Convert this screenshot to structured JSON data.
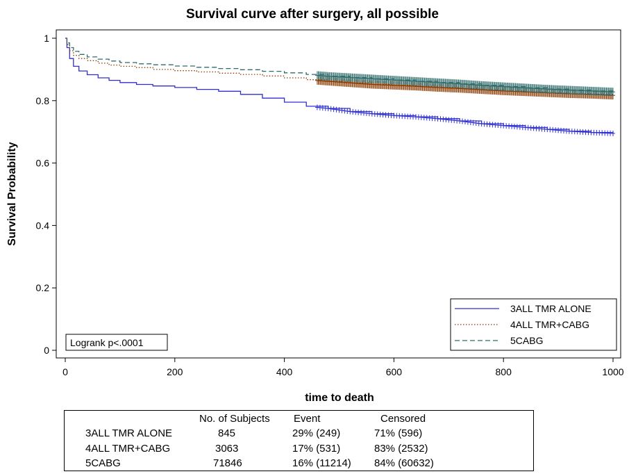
{
  "chart_data": {
    "type": "line",
    "title": "Survival curve after surgery, all possible",
    "xlabel": "time to death",
    "ylabel": "Survival Probability",
    "xlim": [
      0,
      1000
    ],
    "ylim": [
      0,
      1
    ],
    "x_ticks": [
      "0",
      "200",
      "400",
      "600",
      "800",
      "1000"
    ],
    "y_ticks": [
      "0",
      "0.2",
      "0.4",
      "0.6",
      "0.8",
      "1"
    ],
    "grid": false,
    "legend_position": "bottom-right",
    "annotation": "Logrank p<.0001",
    "series": [
      {
        "name": "3ALL TMR ALONE",
        "color": "#2f2fd0",
        "style": "solid",
        "x": [
          0,
          3,
          8,
          15,
          25,
          40,
          60,
          80,
          100,
          130,
          160,
          200,
          240,
          280,
          320,
          360,
          400,
          440,
          480,
          520,
          560,
          600,
          640,
          680,
          720,
          760,
          800,
          840,
          880,
          920,
          960,
          1000
        ],
        "y": [
          1.0,
          0.97,
          0.935,
          0.91,
          0.895,
          0.883,
          0.873,
          0.865,
          0.858,
          0.852,
          0.847,
          0.842,
          0.836,
          0.83,
          0.82,
          0.808,
          0.795,
          0.782,
          0.775,
          0.765,
          0.758,
          0.752,
          0.748,
          0.742,
          0.735,
          0.726,
          0.72,
          0.714,
          0.708,
          0.702,
          0.698,
          0.695
        ],
        "censored_from": 460
      },
      {
        "name": "4ALL TMR+CABG",
        "color": "#8a3a00",
        "style": "dotted",
        "x": [
          0,
          3,
          8,
          15,
          25,
          40,
          60,
          80,
          100,
          130,
          160,
          200,
          240,
          280,
          320,
          360,
          400,
          440,
          480,
          520,
          560,
          600,
          640,
          680,
          720,
          760,
          800,
          840,
          880,
          920,
          960,
          1000
        ],
        "y": [
          1.0,
          0.98,
          0.96,
          0.945,
          0.935,
          0.928,
          0.92,
          0.914,
          0.91,
          0.906,
          0.9,
          0.896,
          0.892,
          0.888,
          0.884,
          0.879,
          0.873,
          0.867,
          0.862,
          0.857,
          0.852,
          0.849,
          0.846,
          0.842,
          0.839,
          0.835,
          0.831,
          0.828,
          0.825,
          0.822,
          0.82,
          0.817
        ],
        "censored_from": 460
      },
      {
        "name": "5CABG",
        "color": "#2f6b6b",
        "style": "dashed",
        "x": [
          0,
          3,
          8,
          15,
          25,
          40,
          60,
          80,
          100,
          130,
          160,
          200,
          240,
          280,
          320,
          360,
          400,
          440,
          480,
          520,
          560,
          600,
          640,
          680,
          720,
          760,
          800,
          840,
          880,
          920,
          960,
          1000
        ],
        "y": [
          1.0,
          0.985,
          0.97,
          0.958,
          0.948,
          0.94,
          0.933,
          0.927,
          0.922,
          0.918,
          0.915,
          0.911,
          0.907,
          0.903,
          0.899,
          0.894,
          0.889,
          0.884,
          0.878,
          0.874,
          0.87,
          0.866,
          0.862,
          0.858,
          0.854,
          0.849,
          0.845,
          0.841,
          0.837,
          0.834,
          0.831,
          0.828
        ],
        "censored_from": 460
      }
    ]
  },
  "summary_table": {
    "headers": [
      "",
      "No. of Subjects",
      "Event",
      "Censored"
    ],
    "rows": [
      [
        "3ALL TMR ALONE",
        "845",
        "29% (249)",
        "71% (596)"
      ],
      [
        "4ALL TMR+CABG",
        "3063",
        "17% (531)",
        "83% (2532)"
      ],
      [
        "5CABG",
        "71846",
        "16% (11214)",
        "84% (60632)"
      ]
    ]
  }
}
